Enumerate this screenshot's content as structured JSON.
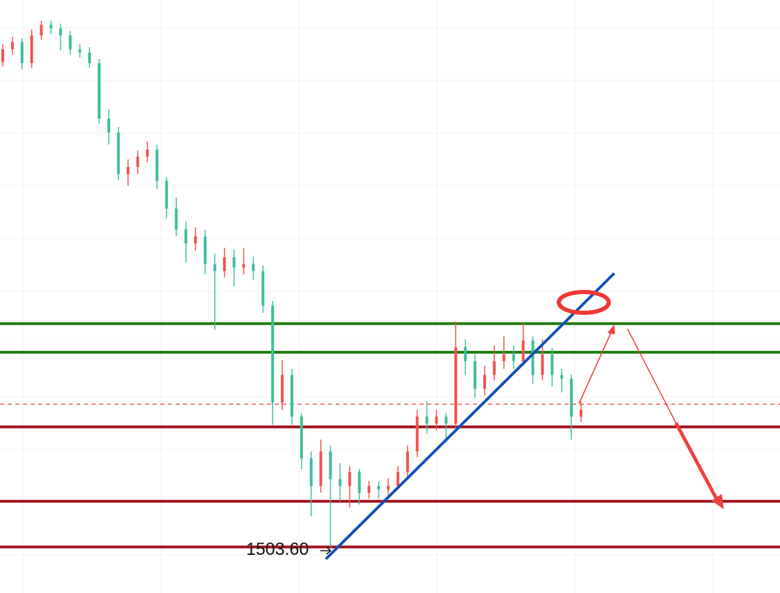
{
  "chart_data": {
    "type": "candlestick",
    "annotation": "1503.60",
    "ylim": [
      1488,
      1689
    ],
    "up_color": "#ef5350",
    "down_color": "#3cbf9a",
    "candles": [
      [
        1668.0,
        1674.0,
        1666.5,
        1672.3
      ],
      [
        1672.3,
        1676.5,
        1670.5,
        1674.7
      ],
      [
        1674.7,
        1676.0,
        1665.5,
        1667.6
      ],
      [
        1667.6,
        1679.0,
        1666.0,
        1677.0
      ],
      [
        1677.0,
        1682.0,
        1675.5,
        1680.6
      ],
      [
        1680.6,
        1682.0,
        1677.5,
        1679.4
      ],
      [
        1679.4,
        1681.0,
        1672.0,
        1677.0
      ],
      [
        1677.0,
        1678.5,
        1670.5,
        1672.3
      ],
      [
        1672.3,
        1674.0,
        1669.5,
        1671.2
      ],
      [
        1671.2,
        1673.0,
        1666.0,
        1667.6
      ],
      [
        1667.6,
        1669.0,
        1647.0,
        1648.8
      ],
      [
        1648.8,
        1652.0,
        1640.0,
        1644.1
      ],
      [
        1644.1,
        1646.0,
        1628.0,
        1630.0
      ],
      [
        1630.0,
        1635.0,
        1626.0,
        1632.4
      ],
      [
        1632.4,
        1638.0,
        1630.0,
        1635.9
      ],
      [
        1635.9,
        1641.0,
        1634.0,
        1638.3
      ],
      [
        1638.3,
        1640.0,
        1625.0,
        1627.7
      ],
      [
        1627.7,
        1629.0,
        1615.0,
        1618.3
      ],
      [
        1618.3,
        1622.0,
        1609.0,
        1611.2
      ],
      [
        1611.2,
        1614.0,
        1600.0,
        1606.5
      ],
      [
        1606.5,
        1612.0,
        1604.0,
        1608.9
      ],
      [
        1608.9,
        1611.0,
        1596.0,
        1599.5
      ],
      [
        1599.5,
        1603.0,
        1577.2,
        1597.1
      ],
      [
        1597.1,
        1605.0,
        1595.0,
        1601.8
      ],
      [
        1601.8,
        1604.5,
        1592.0,
        1598.3
      ],
      [
        1598.3,
        1605.0,
        1596.0,
        1599.5
      ],
      [
        1599.5,
        1602.0,
        1594.0,
        1597.1
      ],
      [
        1597.1,
        1599.0,
        1583.0,
        1585.4
      ],
      [
        1585.4,
        1587.0,
        1545.0,
        1552.5
      ],
      [
        1552.5,
        1567.0,
        1550.0,
        1561.9
      ],
      [
        1561.9,
        1564.0,
        1545.0,
        1547.8
      ],
      [
        1547.8,
        1549.0,
        1530.0,
        1533.7
      ],
      [
        1533.7,
        1536.0,
        1514.0,
        1524.3
      ],
      [
        1524.3,
        1540.0,
        1522.0,
        1536.0
      ],
      [
        1536.0,
        1538.0,
        1503.6,
        1526.6
      ],
      [
        1526.6,
        1532.0,
        1519.0,
        1524.3
      ],
      [
        1524.3,
        1531.0,
        1517.0,
        1529.0
      ],
      [
        1529.0,
        1530.0,
        1518.0,
        1521.9
      ],
      [
        1521.9,
        1526.0,
        1520.0,
        1524.3
      ],
      [
        1524.3,
        1526.0,
        1520.0,
        1523.1
      ],
      [
        1523.1,
        1527.0,
        1521.0,
        1524.3
      ],
      [
        1524.3,
        1531.0,
        1523.0,
        1529.0
      ],
      [
        1529.0,
        1538.0,
        1527.0,
        1536.0
      ],
      [
        1536.0,
        1550.0,
        1534.0,
        1547.8
      ],
      [
        1547.8,
        1553.0,
        1542.0,
        1545.4
      ],
      [
        1545.4,
        1550.0,
        1543.0,
        1547.8
      ],
      [
        1547.8,
        1549.0,
        1539.0,
        1545.4
      ],
      [
        1545.4,
        1580.0,
        1544.0,
        1571.3
      ],
      [
        1571.3,
        1574.0,
        1562.0,
        1566.6
      ],
      [
        1566.6,
        1569.0,
        1554.0,
        1557.2
      ],
      [
        1557.2,
        1565.0,
        1555.0,
        1561.9
      ],
      [
        1561.9,
        1572.0,
        1560.0,
        1566.6
      ],
      [
        1566.6,
        1575.0,
        1564.0,
        1568.9
      ],
      [
        1568.9,
        1572.0,
        1564.0,
        1566.6
      ],
      [
        1566.6,
        1579.5,
        1565.0,
        1573.6
      ],
      [
        1573.6,
        1575.0,
        1559.0,
        1561.9
      ],
      [
        1561.9,
        1574.0,
        1560.0,
        1568.9
      ],
      [
        1568.9,
        1571.0,
        1558.0,
        1561.9
      ],
      [
        1561.9,
        1564.0,
        1556.0,
        1560.7
      ],
      [
        1560.7,
        1562.0,
        1540.0,
        1547.8
      ],
      [
        1547.8,
        1553.0,
        1546.0,
        1550.1
      ]
    ],
    "levels": [
      {
        "value": 1579.3,
        "color": "#1f7a0f",
        "style": "solid"
      },
      {
        "value": 1569.6,
        "color": "#1f7a0f",
        "style": "solid"
      },
      {
        "value": 1552.0,
        "color": "#f05555",
        "style": "dashed"
      },
      {
        "value": 1544.3,
        "color": "#a3101f",
        "style": "solid"
      },
      {
        "value": 1519.1,
        "color": "#a3101f",
        "style": "solid"
      },
      {
        "value": 1503.6,
        "color": "#a3101f",
        "style": "solid"
      }
    ]
  }
}
